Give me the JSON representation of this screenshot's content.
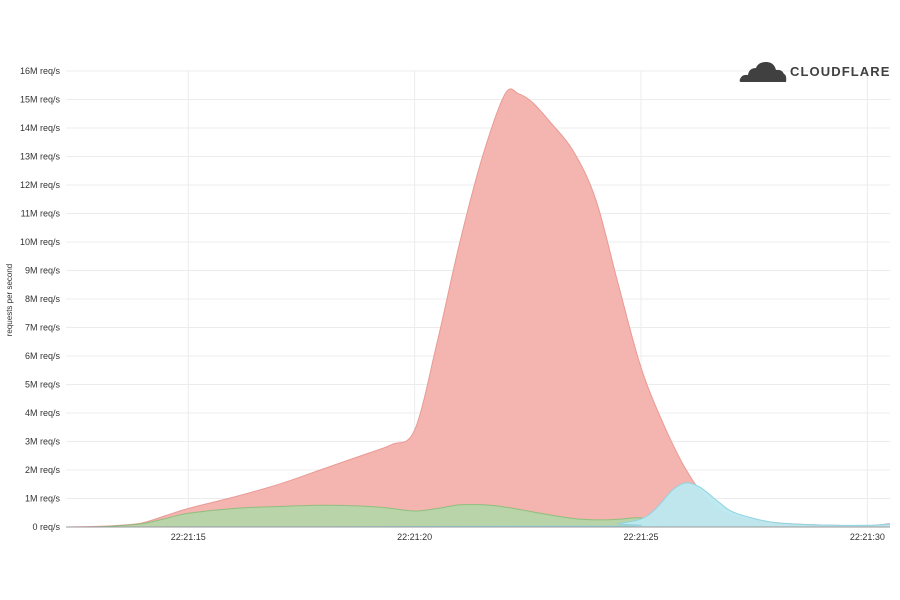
{
  "brand": {
    "name": "CLOUDFLARE",
    "logo_icon": "cloud-icon",
    "logo_color": "#404041"
  },
  "chart_data": {
    "type": "area",
    "title": "",
    "xlabel": "",
    "ylabel": "requests per second",
    "ylim": [
      0,
      16000000
    ],
    "yticks": [
      0,
      1000000,
      2000000,
      3000000,
      4000000,
      5000000,
      6000000,
      7000000,
      8000000,
      9000000,
      10000000,
      11000000,
      12000000,
      13000000,
      14000000,
      15000000,
      16000000
    ],
    "ytick_labels": [
      "0 req/s",
      "1M req/s",
      "2M req/s",
      "3M req/s",
      "4M req/s",
      "5M req/s",
      "6M req/s",
      "7M req/s",
      "8M req/s",
      "9M req/s",
      "10M req/s",
      "11M req/s",
      "12M req/s",
      "13M req/s",
      "14M req/s",
      "15M req/s",
      "16M req/s"
    ],
    "xlim": [
      "22:21:12.3",
      "22:21:30.5"
    ],
    "xticks": [
      "22:21:15",
      "22:21:20",
      "22:21:25",
      "22:21:30"
    ],
    "xtick_labels": [
      "22:21:15",
      "22:21:20",
      "22:21:25",
      "22:21:30"
    ],
    "grid": true,
    "stacked": false,
    "series": [
      {
        "color": "#f4b4af",
        "stroke": "#e99a95",
        "x": [
          "22:21:12.3",
          "22:21:13.0",
          "22:21:13.5",
          "22:21:14.0",
          "22:21:14.5",
          "22:21:15.0",
          "22:21:16.0",
          "22:21:17.0",
          "22:21:18.0",
          "22:21:19.0",
          "22:21:19.5",
          "22:21:20.0",
          "22:21:20.5",
          "22:21:21.0",
          "22:21:21.5",
          "22:21:22.0",
          "22:21:22.3",
          "22:21:22.6",
          "22:21:23.0",
          "22:21:23.5",
          "22:21:24.0",
          "22:21:24.5",
          "22:21:25.0",
          "22:21:25.5",
          "22:21:26.0",
          "22:21:26.5",
          "22:21:27.0",
          "22:21:28.0",
          "22:21:29.0",
          "22:21:30.0",
          "22:21:30.5"
        ],
        "y": [
          0,
          20000,
          60000,
          150000,
          400000,
          650000,
          1050000,
          1500000,
          2050000,
          2600000,
          2900000,
          3400000,
          6500000,
          10000000,
          13000000,
          15200000,
          15200000,
          14900000,
          14200000,
          13200000,
          11500000,
          8500000,
          5600000,
          3600000,
          2000000,
          900000,
          400000,
          150000,
          70000,
          50000,
          120000
        ]
      },
      {
        "color": "#b5d6a8",
        "stroke": "#8fbf7f",
        "x": [
          "22:21:12.3",
          "22:21:13.0",
          "22:21:13.5",
          "22:21:14.0",
          "22:21:14.5",
          "22:21:15.0",
          "22:21:16.0",
          "22:21:17.0",
          "22:21:18.0",
          "22:21:19.0",
          "22:21:19.5",
          "22:21:20.0",
          "22:21:20.5",
          "22:21:21.0",
          "22:21:21.5",
          "22:21:22.0",
          "22:21:22.5",
          "22:21:23.0",
          "22:21:23.5",
          "22:21:24.0",
          "22:21:24.5",
          "22:21:25.0",
          "22:21:25.5",
          "22:21:26.0",
          "22:21:27.0",
          "22:21:28.0",
          "22:21:29.0",
          "22:21:30.0",
          "22:21:30.5"
        ],
        "y": [
          0,
          10000,
          50000,
          120000,
          300000,
          480000,
          650000,
          720000,
          760000,
          720000,
          650000,
          560000,
          650000,
          780000,
          780000,
          700000,
          560000,
          420000,
          300000,
          250000,
          270000,
          320000,
          80000,
          30000,
          10000,
          5000,
          5000,
          5000,
          5000
        ]
      },
      {
        "color": "#bce8f0",
        "stroke": "#8fd3e0",
        "x": [
          "22:21:12.3",
          "22:21:24.0",
          "22:21:24.5",
          "22:21:25.0",
          "22:21:25.3",
          "22:21:25.7",
          "22:21:26.0",
          "22:21:26.3",
          "22:21:26.7",
          "22:21:27.0",
          "22:21:27.5",
          "22:21:28.0",
          "22:21:29.0",
          "22:21:30.0",
          "22:21:30.5"
        ],
        "y": [
          0,
          30000,
          120000,
          280000,
          600000,
          1300000,
          1550000,
          1400000,
          900000,
          550000,
          300000,
          150000,
          70000,
          60000,
          100000
        ]
      }
    ]
  }
}
